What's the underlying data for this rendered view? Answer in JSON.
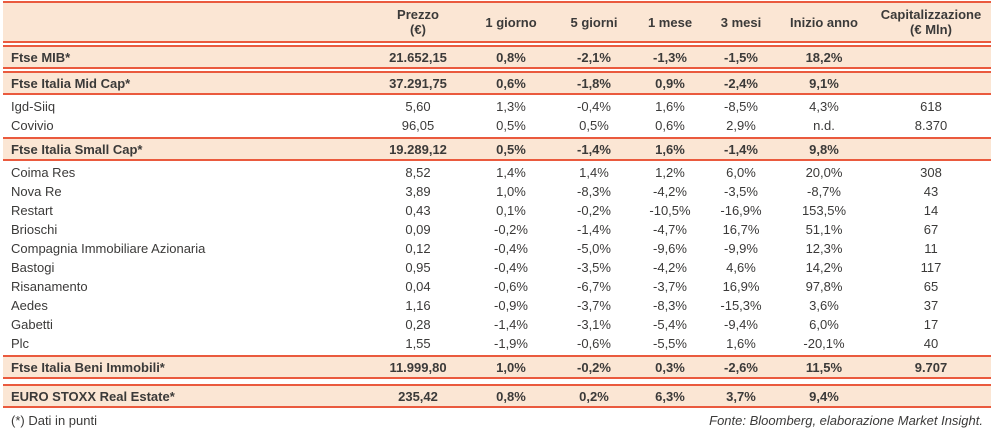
{
  "theme": {
    "band_background": "#FBE6D4",
    "rule_color": "#EA5A3E",
    "text_color": "#3B3A39"
  },
  "table": {
    "columns": [
      {
        "label": "",
        "sub": ""
      },
      {
        "label": "Prezzo",
        "sub": "(€)"
      },
      {
        "label": "1 giorno",
        "sub": ""
      },
      {
        "label": "5 giorni",
        "sub": ""
      },
      {
        "label": "1 mese",
        "sub": ""
      },
      {
        "label": "3 mesi",
        "sub": ""
      },
      {
        "label": "Inizio anno",
        "sub": ""
      },
      {
        "label": "Capitalizzazione",
        "sub": "(€ Mln)"
      }
    ],
    "rows": [
      {
        "name": "Ftse MIB*",
        "type": "index",
        "values": [
          "21.652,15",
          "0,8%",
          "-2,1%",
          "-1,3%",
          "-1,5%",
          "18,2%",
          ""
        ]
      },
      {
        "name": "Ftse Italia Mid Cap*",
        "type": "index",
        "values": [
          "37.291,75",
          "0,6%",
          "-1,8%",
          "0,9%",
          "-2,4%",
          "9,1%",
          ""
        ]
      },
      {
        "name": "Igd-Siiq",
        "type": "stock",
        "values": [
          "5,60",
          "1,3%",
          "-0,4%",
          "1,6%",
          "-8,5%",
          "4,3%",
          "618"
        ]
      },
      {
        "name": "Covivio",
        "type": "stock",
        "values": [
          "96,05",
          "0,5%",
          "0,5%",
          "0,6%",
          "2,9%",
          "n.d.",
          "8.370"
        ]
      },
      {
        "name": "Ftse Italia Small Cap*",
        "type": "index",
        "values": [
          "19.289,12",
          "0,5%",
          "-1,4%",
          "1,6%",
          "-1,4%",
          "9,8%",
          ""
        ]
      },
      {
        "name": "Coima Res",
        "type": "stock",
        "values": [
          "8,52",
          "1,4%",
          "1,4%",
          "1,2%",
          "6,0%",
          "20,0%",
          "308"
        ]
      },
      {
        "name": "Nova Re",
        "type": "stock",
        "values": [
          "3,89",
          "1,0%",
          "-8,3%",
          "-4,2%",
          "-3,5%",
          "-8,7%",
          "43"
        ]
      },
      {
        "name": "Restart",
        "type": "stock",
        "values": [
          "0,43",
          "0,1%",
          "-0,2%",
          "-10,5%",
          "-16,9%",
          "153,5%",
          "14"
        ]
      },
      {
        "name": "Brioschi",
        "type": "stock",
        "values": [
          "0,09",
          "-0,2%",
          "-1,4%",
          "-4,7%",
          "16,7%",
          "51,1%",
          "67"
        ]
      },
      {
        "name": "Compagnia Immobiliare Azionaria",
        "type": "stock",
        "values": [
          "0,12",
          "-0,4%",
          "-5,0%",
          "-9,6%",
          "-9,9%",
          "12,3%",
          "11"
        ]
      },
      {
        "name": "Bastogi",
        "type": "stock",
        "values": [
          "0,95",
          "-0,4%",
          "-3,5%",
          "-4,2%",
          "4,6%",
          "14,2%",
          "117"
        ]
      },
      {
        "name": "Risanamento",
        "type": "stock",
        "values": [
          "0,04",
          "-0,6%",
          "-6,7%",
          "-3,7%",
          "16,9%",
          "97,8%",
          "65"
        ]
      },
      {
        "name": "Aedes",
        "type": "stock",
        "values": [
          "1,16",
          "-0,9%",
          "-3,7%",
          "-8,3%",
          "-15,3%",
          "3,6%",
          "37"
        ]
      },
      {
        "name": "Gabetti",
        "type": "stock",
        "values": [
          "0,28",
          "-1,4%",
          "-3,1%",
          "-5,4%",
          "-9,4%",
          "6,0%",
          "17"
        ]
      },
      {
        "name": "Plc",
        "type": "stock",
        "values": [
          "1,55",
          "-1,9%",
          "-0,6%",
          "-5,5%",
          "1,6%",
          "-20,1%",
          "40"
        ]
      },
      {
        "name": "Ftse Italia Beni Immobili*",
        "type": "index",
        "values": [
          "11.999,80",
          "1,0%",
          "-0,2%",
          "0,3%",
          "-2,6%",
          "11,5%",
          "9.707"
        ]
      },
      {
        "name": "EURO STOXX Real Estate*",
        "type": "index",
        "gap_before": true,
        "values": [
          "235,42",
          "0,8%",
          "0,2%",
          "6,3%",
          "3,7%",
          "9,4%",
          ""
        ]
      }
    ]
  },
  "footer": {
    "note": "(*) Dati in punti",
    "source": "Fonte: Bloomberg, elaborazione Market Insight."
  }
}
